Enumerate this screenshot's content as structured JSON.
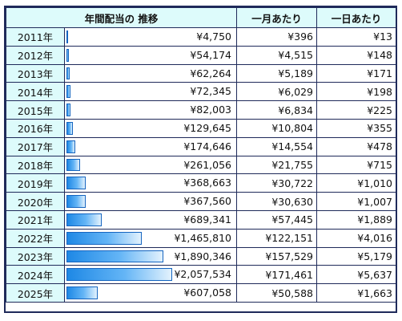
{
  "headers": {
    "trend": "年間配当の 推移",
    "month": "一月あたり",
    "day": "一日あたり"
  },
  "rows": [
    {
      "year": "2011年",
      "annual": "¥4,750",
      "month": "¥396",
      "day": "¥13",
      "value": 4750
    },
    {
      "year": "2012年",
      "annual": "¥54,174",
      "month": "¥4,515",
      "day": "¥148",
      "value": 54174
    },
    {
      "year": "2013年",
      "annual": "¥62,264",
      "month": "¥5,189",
      "day": "¥171",
      "value": 62264
    },
    {
      "year": "2014年",
      "annual": "¥72,345",
      "month": "¥6,029",
      "day": "¥198",
      "value": 72345
    },
    {
      "year": "2015年",
      "annual": "¥82,003",
      "month": "¥6,834",
      "day": "¥225",
      "value": 82003
    },
    {
      "year": "2016年",
      "annual": "¥129,645",
      "month": "¥10,804",
      "day": "¥355",
      "value": 129645
    },
    {
      "year": "2017年",
      "annual": "¥174,646",
      "month": "¥14,554",
      "day": "¥478",
      "value": 174646
    },
    {
      "year": "2018年",
      "annual": "¥261,056",
      "month": "¥21,755",
      "day": "¥715",
      "value": 261056
    },
    {
      "year": "2019年",
      "annual": "¥368,663",
      "month": "¥30,722",
      "day": "¥1,010",
      "value": 368663
    },
    {
      "year": "2020年",
      "annual": "¥367,560",
      "month": "¥30,630",
      "day": "¥1,007",
      "value": 367560
    },
    {
      "year": "2021年",
      "annual": "¥689,341",
      "month": "¥57,445",
      "day": "¥1,889",
      "value": 689341
    },
    {
      "year": "2022年",
      "annual": "¥1,465,810",
      "month": "¥122,151",
      "day": "¥4,016",
      "value": 1465810
    },
    {
      "year": "2023年",
      "annual": "¥1,890,346",
      "month": "¥157,529",
      "day": "¥5,179",
      "value": 1890346
    },
    {
      "year": "2024年",
      "annual": "¥2,057,534",
      "month": "¥171,461",
      "day": "¥5,637",
      "value": 2057534
    },
    {
      "year": "2025年",
      "annual": "¥607,058",
      "month": "¥50,588",
      "day": "¥1,663",
      "value": 607058
    }
  ],
  "colors": {
    "header_bg": "#ddfbfb",
    "border": "#1f2a5a",
    "bar": "#1e88e5"
  }
}
